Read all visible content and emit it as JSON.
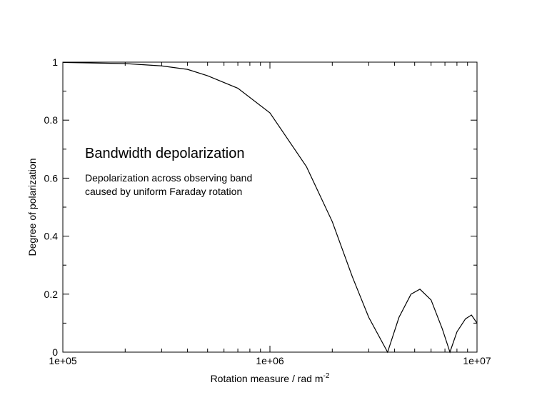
{
  "chart_data": {
    "type": "line",
    "title": "",
    "xlabel": "Rotation measure / rad m",
    "xlabel_superscript": "-2",
    "ylabel": "Degree of polarization",
    "x_scale": "log",
    "xlim": [
      100000,
      10000000
    ],
    "ylim": [
      0,
      1
    ],
    "x_tick_labels": [
      "1e+05",
      "1e+06",
      "1e+07"
    ],
    "y_tick_labels": [
      "0",
      "0.2",
      "0.4",
      "0.6",
      "0.8",
      "1"
    ],
    "grid": false,
    "legend": "none",
    "line_color": "#000000",
    "annotations": [
      {
        "text": "Bandwidth depolarization",
        "style": "heading"
      },
      {
        "text": "Depolarization across observing band",
        "style": "body"
      },
      {
        "text": "caused by uniform Faraday rotation",
        "style": "body"
      }
    ],
    "series": [
      {
        "points": [
          {
            "x": 100000,
            "y": 0.999
          },
          {
            "x": 200000,
            "y": 0.995
          },
          {
            "x": 300000,
            "y": 0.987
          },
          {
            "x": 400000,
            "y": 0.975
          },
          {
            "x": 500000,
            "y": 0.953
          },
          {
            "x": 700000,
            "y": 0.91
          },
          {
            "x": 1000000,
            "y": 0.825
          },
          {
            "x": 1500000,
            "y": 0.64
          },
          {
            "x": 2000000,
            "y": 0.45
          },
          {
            "x": 2500000,
            "y": 0.26
          },
          {
            "x": 3000000,
            "y": 0.12
          },
          {
            "x": 3700000,
            "y": 0.0
          },
          {
            "x": 4200000,
            "y": 0.12
          },
          {
            "x": 4800000,
            "y": 0.2
          },
          {
            "x": 5300000,
            "y": 0.217
          },
          {
            "x": 6000000,
            "y": 0.18
          },
          {
            "x": 6800000,
            "y": 0.08
          },
          {
            "x": 7400000,
            "y": 0.0
          },
          {
            "x": 8000000,
            "y": 0.07
          },
          {
            "x": 8800000,
            "y": 0.115
          },
          {
            "x": 9400000,
            "y": 0.128
          },
          {
            "x": 10000000,
            "y": 0.1
          }
        ]
      }
    ]
  }
}
